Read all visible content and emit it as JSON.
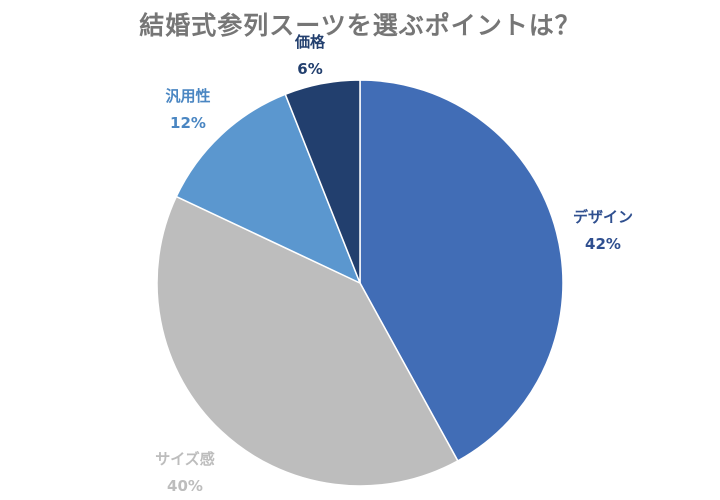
{
  "chart_data": {
    "type": "pie",
    "title": "結婚式参列スーツを選ぶポイントは？",
    "slices": [
      {
        "label": "デザイン",
        "value": 42,
        "display": "42%",
        "color": "#416db6",
        "label_color": "#2f4f8f"
      },
      {
        "label": "サイズ感",
        "value": 40,
        "display": "40%",
        "color": "#bdbdbd",
        "label_color": "#bdbdbd"
      },
      {
        "label": "汎用性",
        "value": 12,
        "display": "12%",
        "color": "#5b97cf",
        "label_color": "#4a86c2"
      },
      {
        "label": "価格",
        "value": 6,
        "display": "6%",
        "color": "#223f6e",
        "label_color": "#223f6e"
      }
    ],
    "legend": "none",
    "slice_borders": "#ffffff"
  }
}
